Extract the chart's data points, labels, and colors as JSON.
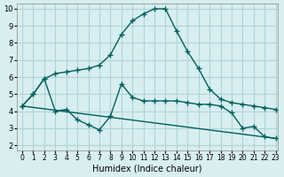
{
  "xlabel": "Humidex (Indice chaleur)",
  "bg_color": "#d8eef0",
  "grid_color": "#b0d4d8",
  "line_color": "#006060",
  "xlim": [
    0,
    23
  ],
  "ylim": [
    2,
    10
  ],
  "yticks": [
    2,
    3,
    4,
    5,
    6,
    7,
    8,
    9,
    10
  ],
  "xticks": [
    0,
    1,
    2,
    3,
    4,
    5,
    6,
    7,
    8,
    9,
    10,
    11,
    12,
    13,
    14,
    15,
    16,
    17,
    18,
    19,
    20,
    21,
    22,
    23
  ],
  "line1_x": [
    0,
    1,
    2,
    3,
    4,
    5,
    6,
    7,
    8,
    9,
    10,
    11,
    12,
    13,
    14,
    15,
    16,
    17,
    18,
    19,
    20,
    21,
    22,
    23
  ],
  "line1_y": [
    4.3,
    5.0,
    5.9,
    6.2,
    6.3,
    6.4,
    6.5,
    6.7,
    7.3,
    8.5,
    9.3,
    9.7,
    10.0,
    10.0,
    8.7,
    7.5,
    6.5,
    5.3,
    4.7,
    4.5,
    4.4,
    4.3,
    4.2,
    4.1
  ],
  "line2_x": [
    0,
    1,
    2,
    3,
    4,
    5,
    6,
    7,
    8,
    9,
    10,
    11,
    12,
    13,
    14,
    15,
    16,
    17,
    18,
    19,
    20,
    21,
    22,
    23
  ],
  "line2_y": [
    4.3,
    5.0,
    5.9,
    4.0,
    4.1,
    3.5,
    3.2,
    2.9,
    3.7,
    5.6,
    4.8,
    4.6,
    4.6,
    4.6,
    4.6,
    4.5,
    4.4,
    4.4,
    4.3,
    3.9,
    3.0,
    3.1,
    2.5,
    2.4
  ],
  "line3_x": [
    0,
    23
  ],
  "line3_y": [
    4.3,
    2.4
  ]
}
